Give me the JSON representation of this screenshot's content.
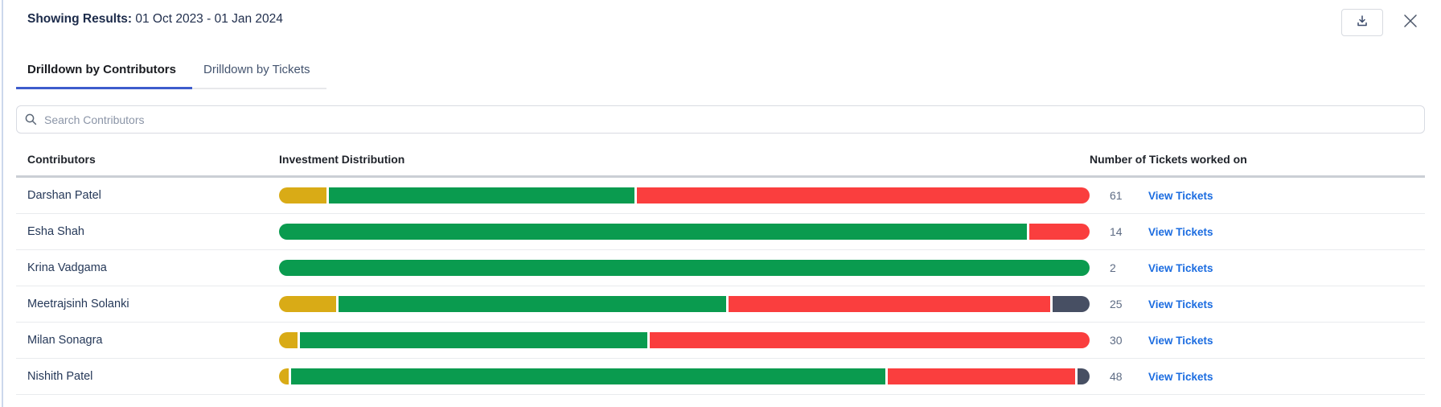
{
  "header": {
    "label": "Showing Results:",
    "value": "01 Oct 2023 - 01 Jan 2024"
  },
  "actions": {
    "download_icon": "download-tray-arrow",
    "close_icon": "x"
  },
  "tabs": {
    "items": [
      {
        "label": "Drilldown by Contributors",
        "active": true
      },
      {
        "label": "Drilldown by Tickets",
        "active": false
      }
    ]
  },
  "search": {
    "placeholder": "Search Contributors",
    "icon": "magnifier"
  },
  "colors": {
    "yellow": "#d9ab16",
    "green": "#0a9b4f",
    "red": "#fa3e3e",
    "dark": "#474f63",
    "link_blue": "#1b6ce0",
    "tab_accent": "#3d5ccc"
  },
  "table": {
    "columns": [
      "Contributors",
      "Investment Distribution",
      "Number of Tickets worked on"
    ],
    "view_tickets_label": "View Tickets",
    "rows": [
      {
        "name": "Darshan Patel",
        "tickets": "61",
        "segments": [
          {
            "color": "yellow",
            "pct": 5.9
          },
          {
            "color": "green",
            "pct": 37.6
          },
          {
            "color": "red",
            "pct": 55.9
          }
        ]
      },
      {
        "name": "Esha Shah",
        "tickets": "14",
        "segments": [
          {
            "color": "green",
            "pct": 92.0
          },
          {
            "color": "red",
            "pct": 7.4
          }
        ]
      },
      {
        "name": "Krina Vadgama",
        "tickets": "2",
        "segments": [
          {
            "color": "green",
            "pct": 100
          }
        ]
      },
      {
        "name": "Meetrajsinh Solanki",
        "tickets": "25",
        "segments": [
          {
            "color": "yellow",
            "pct": 7.0
          },
          {
            "color": "green",
            "pct": 47.5
          },
          {
            "color": "red",
            "pct": 39.4
          },
          {
            "color": "dark",
            "pct": 4.5
          }
        ]
      },
      {
        "name": "Milan Sonagra",
        "tickets": "30",
        "segments": [
          {
            "color": "yellow",
            "pct": 2.3
          },
          {
            "color": "green",
            "pct": 42.6
          },
          {
            "color": "red",
            "pct": 54.0
          }
        ]
      },
      {
        "name": "Nishith Patel",
        "tickets": "48",
        "segments": [
          {
            "color": "yellow",
            "pct": 1.2
          },
          {
            "color": "green",
            "pct": 72.8
          },
          {
            "color": "red",
            "pct": 22.9
          },
          {
            "color": "dark",
            "pct": 1.5
          }
        ]
      }
    ]
  }
}
